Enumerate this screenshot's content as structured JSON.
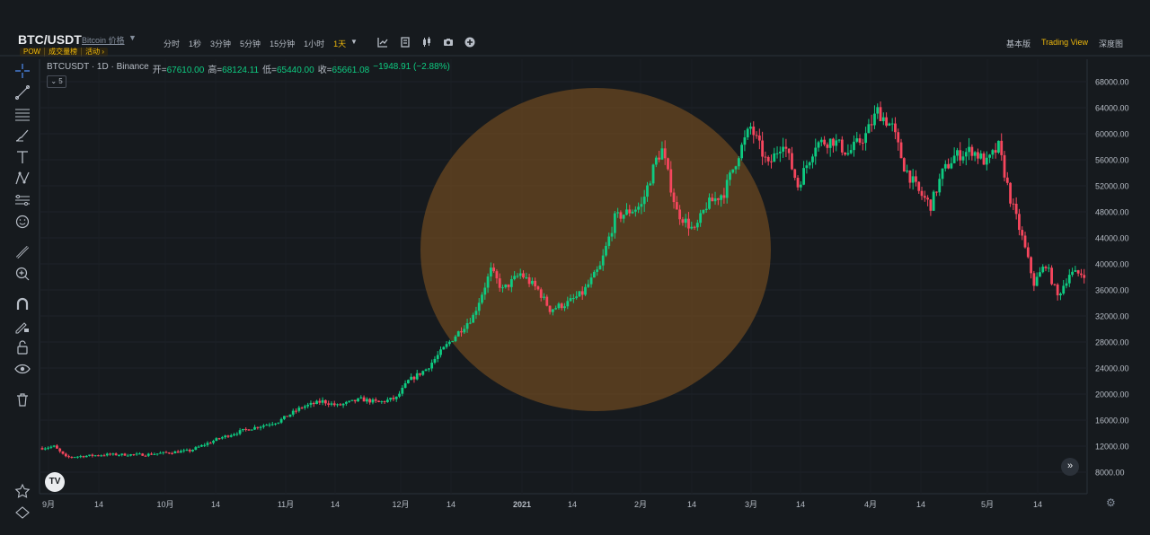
{
  "header": {
    "pair": "BTC/USDT",
    "pair_sub": "Bitcoin 价格",
    "caret": "▼",
    "badges": [
      "POW",
      "成交量榜",
      "活动 ›"
    ],
    "intervals": [
      "分时",
      "1秒",
      "3分钟",
      "5分钟",
      "15分钟",
      "1小时",
      "1天"
    ],
    "interval_caret": "▼",
    "active_interval": "1天",
    "views": [
      "基本版",
      "Trading View",
      "深度图"
    ],
    "active_view": "Trading View",
    "tool_icons": [
      "indicator-icon",
      "template-icon",
      "candle-type-icon",
      "camera-icon",
      "plus-circle-icon"
    ]
  },
  "legend": {
    "symbol": "BTCUSDT · 1D · Binance",
    "open_label": "开=",
    "open": "67610.00",
    "high_label": "高=",
    "high": "68124.11",
    "low_label": "低=",
    "low": "65440.00",
    "close_label": "收=",
    "close": "65661.08",
    "change": "−1948.91 (−2.88%)"
  },
  "collapse_label": "⌄ 5",
  "colors": {
    "up": "#0ecb81",
    "down": "#f6465d",
    "accent": "#f0b90b",
    "highlight": "#7a5020"
  },
  "left_tools": [
    "crosshair-icon",
    "trendline-icon",
    "horizontal-lines-icon",
    "brush-icon",
    "text-icon",
    "pattern-icon",
    "projection-icon",
    "emoji-icon",
    "ruler-icon",
    "zoom-in-icon",
    "magnet-icon",
    "lock-draw-icon",
    "lock-icon",
    "eye-icon",
    "trash-icon",
    "star-icon",
    "home-icon"
  ],
  "chart_data": {
    "type": "candlestick",
    "symbol": "BTCUSDT",
    "interval": "1D",
    "y_ticks": [
      "68000.00",
      "64000.00",
      "60000.00",
      "56000.00",
      "52000.00",
      "48000.00",
      "44000.00",
      "40000.00",
      "36000.00",
      "32000.00",
      "28000.00",
      "24000.00",
      "20000.00",
      "16000.00",
      "12000.00",
      "8000.00"
    ],
    "ylim": [
      5000,
      70000
    ],
    "x_ticks": [
      "9月",
      "14",
      "10月",
      "14",
      "11月",
      "14",
      "12月",
      "14",
      "2021",
      "14",
      "2月",
      "14",
      "3月",
      "14",
      "4月",
      "14",
      "5月",
      "14"
    ],
    "anchors": [
      {
        "day": 0,
        "price": 11700
      },
      {
        "day": 4,
        "price": 11950
      },
      {
        "day": 8,
        "price": 10300
      },
      {
        "day": 22,
        "price": 10700
      },
      {
        "day": 35,
        "price": 10700
      },
      {
        "day": 50,
        "price": 11300
      },
      {
        "day": 60,
        "price": 13200
      },
      {
        "day": 68,
        "price": 14400
      },
      {
        "day": 80,
        "price": 15800
      },
      {
        "day": 88,
        "price": 18000
      },
      {
        "day": 95,
        "price": 18900
      },
      {
        "day": 100,
        "price": 18200
      },
      {
        "day": 108,
        "price": 19200
      },
      {
        "day": 114,
        "price": 18700
      },
      {
        "day": 120,
        "price": 19400
      },
      {
        "day": 124,
        "price": 22000
      },
      {
        "day": 130,
        "price": 23800
      },
      {
        "day": 138,
        "price": 28000
      },
      {
        "day": 146,
        "price": 32000
      },
      {
        "day": 152,
        "price": 39000
      },
      {
        "day": 156,
        "price": 36000
      },
      {
        "day": 162,
        "price": 38500
      },
      {
        "day": 168,
        "price": 36000
      },
      {
        "day": 172,
        "price": 33000
      },
      {
        "day": 178,
        "price": 34000
      },
      {
        "day": 183,
        "price": 35500
      },
      {
        "day": 189,
        "price": 39500
      },
      {
        "day": 194,
        "price": 47000
      },
      {
        "day": 203,
        "price": 49000
      },
      {
        "day": 208,
        "price": 56000
      },
      {
        "day": 210,
        "price": 57500
      },
      {
        "day": 215,
        "price": 48000
      },
      {
        "day": 221,
        "price": 45000
      },
      {
        "day": 225,
        "price": 49000
      },
      {
        "day": 231,
        "price": 51000
      },
      {
        "day": 236,
        "price": 57000
      },
      {
        "day": 240,
        "price": 61000
      },
      {
        "day": 246,
        "price": 55000
      },
      {
        "day": 251,
        "price": 59000
      },
      {
        "day": 256,
        "price": 52000
      },
      {
        "day": 262,
        "price": 58500
      },
      {
        "day": 268,
        "price": 59000
      },
      {
        "day": 273,
        "price": 57000
      },
      {
        "day": 279,
        "price": 59800
      },
      {
        "day": 283,
        "price": 63500
      },
      {
        "day": 288,
        "price": 61000
      },
      {
        "day": 292,
        "price": 55000
      },
      {
        "day": 297,
        "price": 51000
      },
      {
        "day": 301,
        "price": 49000
      },
      {
        "day": 305,
        "price": 54000
      },
      {
        "day": 309,
        "price": 56500
      },
      {
        "day": 315,
        "price": 57500
      },
      {
        "day": 320,
        "price": 55500
      },
      {
        "day": 324,
        "price": 58000
      },
      {
        "day": 328,
        "price": 50000
      },
      {
        "day": 332,
        "price": 44000
      },
      {
        "day": 336,
        "price": 37000
      },
      {
        "day": 340,
        "price": 40000
      },
      {
        "day": 344,
        "price": 35000
      },
      {
        "day": 348,
        "price": 38500
      }
    ],
    "total_days": 354,
    "highlight_circle": "orange translucent circle over Dec 2020 – Mar 2021"
  }
}
